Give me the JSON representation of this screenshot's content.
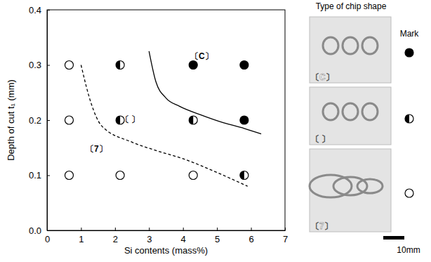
{
  "chart_data": {
    "type": "scatter",
    "x_label": "Si contents (mass%)",
    "y_label": "Depth of cut t₁ (mm)",
    "xlim": [
      0,
      7
    ],
    "xticks": [
      0,
      1,
      2,
      3,
      4,
      5,
      6,
      7
    ],
    "ylim": [
      0,
      0.4
    ],
    "yticks": [
      {
        "value": 0,
        "label": "0.0"
      },
      0.1,
      0.2,
      0.3,
      0.4
    ],
    "grid": false,
    "legend": "right",
    "legend_title": "Type of chip shape",
    "mark_title": "Mark",
    "scale_label": "10mm",
    "series": [
      {
        "name": "〔C〕",
        "type": "scatter",
        "marker": "circle-filled",
        "color": "#000000",
        "x": [
          4.3,
          5.8,
          5.8
        ],
        "values": [
          0.3,
          0.3,
          0.2
        ]
      },
      {
        "name": "〔 〕",
        "type": "scatter",
        "marker": "circle-half",
        "color": "#000000",
        "x": [
          2.15,
          2.15,
          4.3,
          5.8
        ],
        "values": [
          0.3,
          0.2,
          0.2,
          0.1
        ]
      },
      {
        "name": "〔7〕",
        "type": "scatter",
        "marker": "circle-open",
        "color": "#000000",
        "x": [
          0.65,
          0.65,
          0.65,
          2.15,
          4.3
        ],
        "values": [
          0.3,
          0.2,
          0.1,
          0.1,
          0.1
        ]
      },
      {
        "type": "line",
        "line_style": "dashed",
        "color": "#000000",
        "x": [
          1.0,
          1.3,
          1.6,
          2.5,
          3.2,
          4.0,
          5.0,
          5.9
        ],
        "values": [
          0.3,
          0.23,
          0.19,
          0.16,
          0.145,
          0.13,
          0.105,
          0.08
        ]
      },
      {
        "type": "line",
        "line_style": "solid",
        "color": "#000000",
        "x": [
          3.0,
          3.2,
          3.5,
          3.9,
          4.5,
          5.2,
          5.8,
          6.3
        ],
        "values": [
          0.325,
          0.27,
          0.24,
          0.225,
          0.21,
          0.195,
          0.185,
          0.175
        ]
      }
    ],
    "annotations": [
      {
        "text": "〔C〕",
        "x": 4.55,
        "y": 0.315
      },
      {
        "text": "〔 〕",
        "x": 2.45,
        "y": 0.2
      },
      {
        "text": "〔7〕",
        "x": 1.45,
        "y": 0.147
      }
    ]
  }
}
